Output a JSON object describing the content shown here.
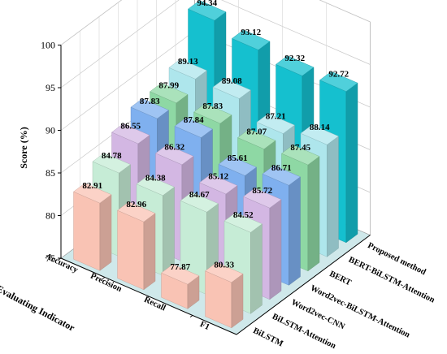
{
  "chart_data": {
    "type": "bar",
    "title": "",
    "ylabel": "Score (%)",
    "xlabel": "Evaluating Indicator",
    "ylim": [
      75,
      100
    ],
    "yticks": [
      75,
      80,
      85,
      90,
      95,
      100
    ],
    "categories": [
      "Accuracy",
      "Precision",
      "Recall",
      "F1"
    ],
    "series": [
      {
        "name": "BiLSTM",
        "color": "#f9c3b4",
        "values": [
          82.91,
          82.96,
          77.87,
          80.33
        ]
      },
      {
        "name": "BiLSTM-Attention",
        "color": "#c6ecd6",
        "values": [
          84.78,
          84.38,
          84.67,
          84.52
        ]
      },
      {
        "name": "Word2vec-CNN",
        "color": "#d3b7e3",
        "values": [
          86.55,
          86.32,
          85.12,
          85.72
        ]
      },
      {
        "name": "Word2vec-BiLSTM-Attention",
        "color": "#7fb0ef",
        "values": [
          87.83,
          87.84,
          85.61,
          86.71
        ]
      },
      {
        "name": "BERT",
        "color": "#8ed8a4",
        "values": [
          87.99,
          87.83,
          87.07,
          87.45
        ]
      },
      {
        "name": "BERT-BiLSTM-Attention",
        "color": "#aee6ec",
        "values": [
          89.13,
          89.08,
          87.21,
          88.14
        ]
      },
      {
        "name": "Proposed method",
        "color": "#15c0cf",
        "values": [
          94.34,
          93.12,
          92.32,
          92.72
        ]
      }
    ],
    "grid": true,
    "legend": "depth-axis"
  }
}
